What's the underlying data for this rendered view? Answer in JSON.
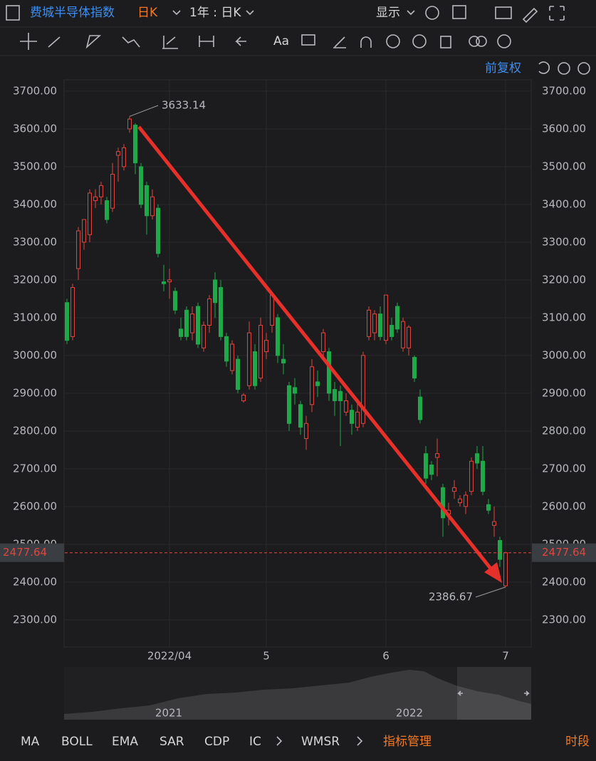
{
  "header": {
    "title": "费城半导体指数",
    "period": "日K",
    "range": "1年 : 日K",
    "display": "显示"
  },
  "toolbar": {
    "font": "Aa",
    "adjust": "前复权"
  },
  "navigator": {
    "labels": [
      "2021",
      "2022"
    ]
  },
  "indicators": {
    "tabs": [
      "MA",
      "BOLL",
      "EMA",
      "SAR",
      "CDP",
      "IC",
      "WMSR"
    ],
    "manage": "指标管理",
    "session": "时段"
  },
  "chart_data": {
    "type": "candlestick",
    "categories": [
      null,
      null,
      null,
      null,
      null,
      null,
      null,
      null,
      null,
      null,
      null,
      null,
      null,
      null,
      null,
      null,
      null,
      null,
      "2022/04",
      null,
      null,
      null,
      null,
      null,
      null,
      null,
      null,
      null,
      null,
      null,
      null,
      null,
      null,
      null,
      null,
      "5",
      null,
      null,
      null,
      null,
      null,
      null,
      null,
      null,
      null,
      null,
      null,
      null,
      null,
      null,
      null,
      null,
      null,
      null,
      null,
      null,
      "6",
      null,
      null,
      null,
      null,
      null,
      null,
      null,
      null,
      null,
      null,
      null,
      null,
      null,
      null,
      null,
      null,
      null,
      null,
      null,
      null,
      "7"
    ],
    "open": [
      3140,
      3050,
      3230,
      3300,
      3320,
      3410,
      3420,
      3410,
      3390,
      3530,
      3500,
      3600,
      3610,
      3500,
      3450,
      3370,
      3390,
      3195,
      3195,
      3170,
      3070,
      3120,
      3060,
      3130,
      3020,
      3080,
      3200,
      3180,
      3050,
      2960,
      2990,
      2880,
      2920,
      3010,
      2940,
      3010,
      3080,
      3100,
      2990,
      2920,
      2915,
      2870,
      2780,
      2870,
      2930,
      3010,
      3010,
      2910,
      2905,
      2850,
      2855,
      2810,
      2820,
      3050,
      3060,
      3110,
      3040,
      3080,
      3130,
      3020,
      3020,
      2995,
      2890,
      2740,
      2710,
      2730,
      2650,
      2580,
      2640,
      2610,
      2600,
      2640,
      2740,
      2720,
      2605,
      2550,
      2510,
      2390
    ],
    "high": [
      3150,
      3190,
      3340,
      3360,
      3440,
      3440,
      3460,
      3420,
      3510,
      3550,
      3560,
      3633.14,
      3615,
      3510,
      3460,
      3440,
      3400,
      3240,
      3230,
      3180,
      3100,
      3130,
      3130,
      3140,
      3090,
      3160,
      3220,
      3200,
      3060,
      3040,
      3000,
      2900,
      3090,
      3030,
      3100,
      3060,
      3165,
      3110,
      3030,
      2930,
      2940,
      2880,
      2840,
      2990,
      2960,
      3070,
      3020,
      2930,
      2920,
      2900,
      2870,
      2880,
      3010,
      3130,
      3120,
      3130,
      3160,
      3100,
      3140,
      3100,
      3080,
      3000,
      2910,
      2760,
      2720,
      2780,
      2660,
      2610,
      2670,
      2630,
      2640,
      2730,
      2760,
      2760,
      2620,
      2600,
      2520,
      2480
    ],
    "low": [
      3030,
      3040,
      3200,
      3280,
      3300,
      3390,
      3400,
      3350,
      3380,
      3460,
      3490,
      3590,
      3480,
      3390,
      3320,
      3360,
      3260,
      3170,
      3150,
      3110,
      3040,
      3040,
      3040,
      3020,
      3010,
      3060,
      3100,
      3040,
      2970,
      2950,
      2900,
      2875,
      2910,
      2910,
      2930,
      2990,
      3060,
      2980,
      2950,
      2800,
      2870,
      2790,
      2750,
      2850,
      2890,
      2990,
      2880,
      2840,
      2760,
      2840,
      2790,
      2800,
      2810,
      3040,
      3040,
      3040,
      3030,
      3040,
      3060,
      3010,
      3000,
      2930,
      2820,
      2660,
      2670,
      2680,
      2520,
      2550,
      2620,
      2600,
      2580,
      2630,
      2700,
      2630,
      2580,
      2520,
      2440,
      2386.67
    ],
    "close": [
      3040,
      3180,
      3330,
      3360,
      3430,
      3420,
      3450,
      3360,
      3480,
      3540,
      3550,
      3626,
      3510,
      3400,
      3370,
      3420,
      3270,
      3190,
      3200,
      3120,
      3050,
      3050,
      3110,
      3030,
      3080,
      3150,
      3140,
      3050,
      2985,
      3030,
      2910,
      2895,
      3060,
      2920,
      3080,
      3040,
      3160,
      3000,
      2980,
      2820,
      2900,
      2810,
      2820,
      2970,
      2920,
      3060,
      2900,
      2880,
      2880,
      2880,
      2820,
      2850,
      3000,
      3120,
      3110,
      3050,
      3160,
      3050,
      3070,
      3090,
      3075,
      2940,
      2830,
      2675,
      2685,
      2740,
      2570,
      2590,
      2650,
      2620,
      2630,
      2720,
      2715,
      2640,
      2590,
      2560,
      2460,
      2477.64
    ],
    "up_color": "#e0463f",
    "down_color": "#1fa84a",
    "ylim": [
      2228,
      3730
    ],
    "yticks": [
      {
        "value": 2300,
        "label": "2300.00"
      },
      {
        "value": 2400,
        "label": "2400.00"
      },
      {
        "value": 2500,
        "label": "2500.00"
      },
      {
        "value": 2600,
        "label": "2600.00"
      },
      {
        "value": 2700,
        "label": "2700.00"
      },
      {
        "value": 2800,
        "label": "2800.00"
      },
      {
        "value": 2900,
        "label": "2900.00"
      },
      {
        "value": 3000,
        "label": "3000.00"
      },
      {
        "value": 3100,
        "label": "3100.00"
      },
      {
        "value": 3200,
        "label": "3200.00"
      },
      {
        "value": 3300,
        "label": "3300.00"
      },
      {
        "value": 3400,
        "label": "3400.00"
      },
      {
        "value": 3500,
        "label": "3500.00"
      },
      {
        "value": 3600,
        "label": "3600.00"
      },
      {
        "value": 3700,
        "label": "3700.00"
      }
    ],
    "grid": true,
    "max_label": 3633.14,
    "min_label": 2386.67,
    "last_price": 2477.64
  }
}
